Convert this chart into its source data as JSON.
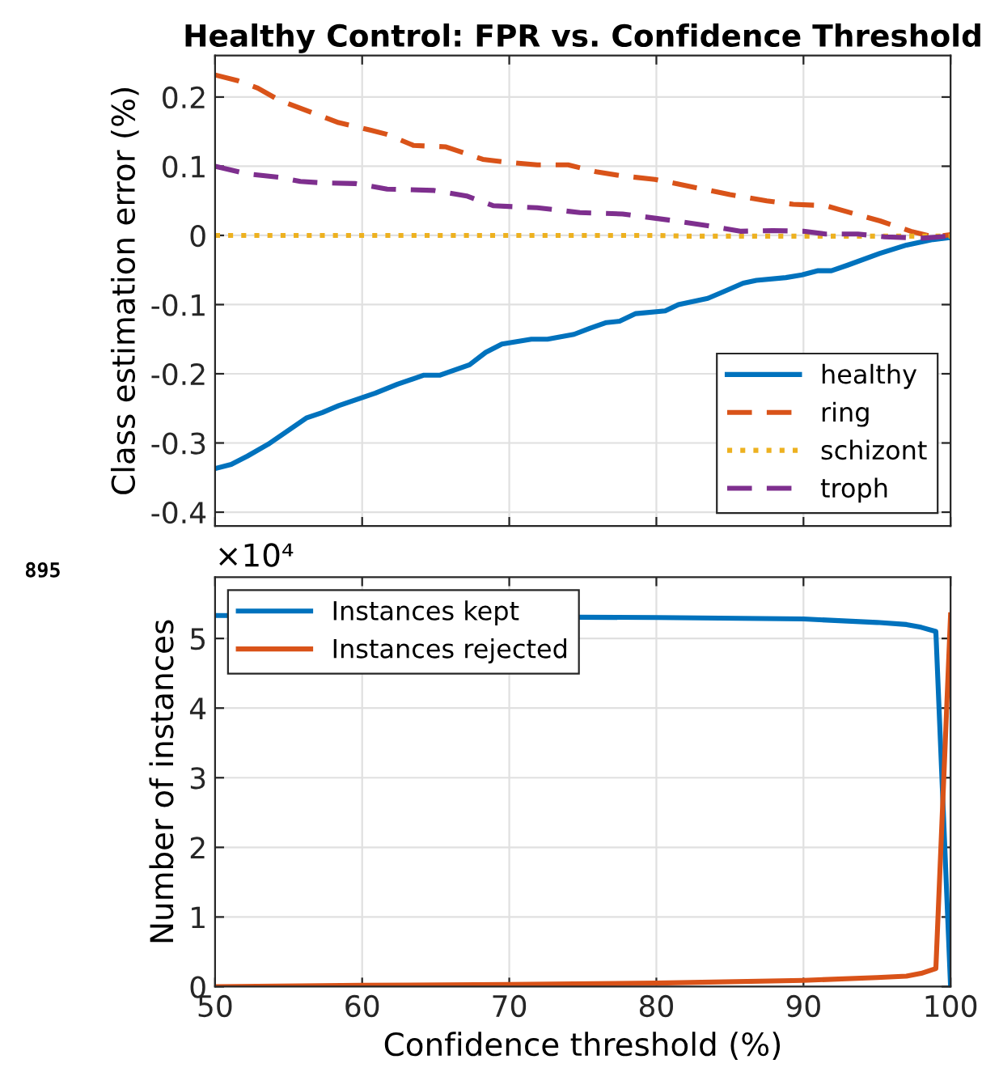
{
  "chart_data": [
    {
      "type": "line",
      "title": "Healthy Control: FPR vs. Confidence Threshold",
      "ylabel": "Class estimation error (%)",
      "xlim": [
        50,
        100
      ],
      "ylim": [
        -0.42,
        0.26
      ],
      "xticks": [
        50,
        60,
        70,
        80,
        90,
        100
      ],
      "yticks": [
        {
          "value": -0.4,
          "label": "-0.4"
        },
        {
          "value": -0.3,
          "label": "-0.3"
        },
        {
          "value": -0.2,
          "label": "-0.2"
        },
        {
          "value": -0.1,
          "label": "-0.1"
        },
        0,
        0.1,
        0.2
      ],
      "tick_labels": "y",
      "grid": true,
      "legend": "lower right",
      "series": [
        {
          "name": "healthy",
          "color": "#0072bd",
          "line_style": "solid",
          "x": [
            50,
            51.1,
            52.2,
            53.6,
            55.1,
            56.2,
            57.3,
            58.4,
            60.9,
            62.4,
            64.2,
            65.3,
            67.3,
            68.4,
            69.5,
            71.5,
            72.6,
            74.4,
            75.5,
            76.6,
            77.5,
            78.6,
            80.6,
            81.5,
            83.5,
            84.6,
            85.9,
            86.8,
            88.8,
            89.9,
            91.0,
            91.9,
            93.0,
            95.2,
            97.0,
            98.8,
            100
          ],
          "values": [
            -0.337,
            -0.331,
            -0.319,
            -0.302,
            -0.28,
            -0.264,
            -0.256,
            -0.246,
            -0.228,
            -0.215,
            -0.202,
            -0.202,
            -0.187,
            -0.169,
            -0.157,
            -0.15,
            -0.15,
            -0.143,
            -0.134,
            -0.126,
            -0.124,
            -0.113,
            -0.109,
            -0.1,
            -0.091,
            -0.081,
            -0.069,
            -0.065,
            -0.061,
            -0.057,
            -0.051,
            -0.051,
            -0.043,
            -0.026,
            -0.014,
            -0.006,
            -0.003
          ]
        },
        {
          "name": "ring",
          "color": "#d95319",
          "line_style": "dashed",
          "x": [
            50,
            51.5,
            52.9,
            54.4,
            56.9,
            58.4,
            60.6,
            61.7,
            63.5,
            65.7,
            68.2,
            69.7,
            71.9,
            74.0,
            75.9,
            77.7,
            79.9,
            81.3,
            85.0,
            87.5,
            89.3,
            91.5,
            93.0,
            95.2,
            97.3,
            98.8,
            100
          ],
          "values": [
            0.232,
            0.224,
            0.213,
            0.195,
            0.175,
            0.163,
            0.152,
            0.146,
            0.13,
            0.128,
            0.11,
            0.106,
            0.102,
            0.102,
            0.092,
            0.086,
            0.081,
            0.075,
            0.059,
            0.05,
            0.045,
            0.043,
            0.034,
            0.021,
            0.006,
            -0.002,
            0.001
          ]
        },
        {
          "name": "schizont",
          "color": "#edb120",
          "line_style": "dotted",
          "x": [
            50,
            80,
            82,
            100
          ],
          "values": [
            0.0,
            0.0,
            -0.001,
            -0.001
          ]
        },
        {
          "name": "troph",
          "color": "#7e2f8e",
          "line_style": "dashed",
          "x": [
            50,
            52.2,
            54.4,
            55.8,
            57.3,
            59.5,
            61.7,
            64.9,
            67.1,
            68.9,
            71.9,
            74.8,
            77.7,
            81.3,
            83.5,
            85.7,
            87.9,
            90.0,
            91.5,
            93.7,
            95.5,
            98.1,
            100
          ],
          "values": [
            0.1,
            0.089,
            0.084,
            0.078,
            0.076,
            0.075,
            0.067,
            0.065,
            0.057,
            0.043,
            0.04,
            0.033,
            0.031,
            0.021,
            0.014,
            0.006,
            0.007,
            0.006,
            0.002,
            0.002,
            -0.002,
            -0.004,
            -0.001
          ]
        }
      ]
    },
    {
      "type": "line",
      "xlabel": "Confidence threshold (%)",
      "ylabel": "Number of instances",
      "xlim": [
        50,
        100
      ],
      "ylim": [
        0,
        5.88
      ],
      "xticks": [
        50,
        60,
        70,
        80,
        90,
        100
      ],
      "yticks": [
        0,
        1,
        2,
        3,
        4,
        5
      ],
      "grid": true,
      "legend": "upper left",
      "annotations": [
        "×10⁴",
        "895"
      ],
      "series": [
        {
          "name": "Instances kept",
          "color": "#0072bd",
          "line_style": "solid",
          "x": [
            50,
            80,
            90,
            95,
            97,
            98,
            99,
            100
          ],
          "values": [
            5.33,
            5.3,
            5.28,
            5.23,
            5.2,
            5.16,
            5.1,
            0
          ]
        },
        {
          "name": "Instances rejected",
          "color": "#d95319",
          "line_style": "solid",
          "x": [
            50,
            60,
            70,
            80,
            90,
            95,
            97,
            98,
            99,
            100
          ],
          "values": [
            0,
            0.02,
            0.03,
            0.05,
            0.09,
            0.13,
            0.15,
            0.19,
            0.26,
            5.34
          ]
        }
      ]
    }
  ]
}
